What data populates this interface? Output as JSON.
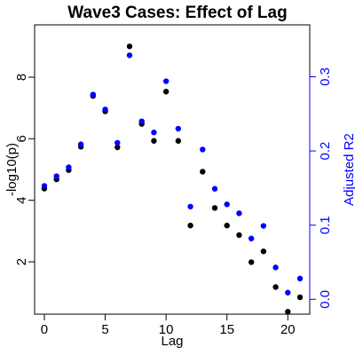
{
  "chart_data": {
    "type": "scatter",
    "title": "Wave3 Cases: Effect of Lag",
    "xlabel": "Lag",
    "ylabel_left": "-log10(p)",
    "ylabel_right": "Adjusted R2",
    "xlim": [
      -0.8,
      21.8
    ],
    "ylim_left": [
      0.3,
      9.7
    ],
    "ylim_right": [
      -0.02,
      0.37
    ],
    "x_ticks": [
      0,
      5,
      10,
      15,
      20
    ],
    "y_left_ticks": [
      2,
      4,
      6,
      8
    ],
    "y_right_ticks": [
      0.0,
      0.1,
      0.2,
      0.3
    ],
    "y_right_tick_labels": [
      "0.0",
      "0.1",
      "0.2",
      "0.3"
    ],
    "colors": {
      "left_series": "#000000",
      "right_series": "#0000ff",
      "right_axis": "#0000ff"
    },
    "series": [
      {
        "axis": "left",
        "x": [
          0,
          1,
          2,
          3,
          4,
          5,
          6,
          7,
          8,
          9,
          10,
          11,
          12,
          13,
          14,
          15,
          16,
          17,
          18,
          19,
          20,
          21
        ],
        "values": [
          4.38,
          4.68,
          4.98,
          5.74,
          7.39,
          6.89,
          5.72,
          9.0,
          6.48,
          5.93,
          7.53,
          5.93,
          3.18,
          4.93,
          3.75,
          3.18,
          2.87,
          1.99,
          2.34,
          1.18,
          0.38,
          0.85
        ]
      },
      {
        "axis": "right",
        "x": [
          0,
          1,
          2,
          3,
          4,
          5,
          6,
          7,
          8,
          9,
          10,
          11,
          12,
          13,
          14,
          15,
          16,
          17,
          18,
          19,
          20,
          21
        ],
        "values": [
          0.153,
          0.166,
          0.178,
          0.209,
          0.276,
          0.256,
          0.211,
          0.329,
          0.24,
          0.225,
          0.294,
          0.23,
          0.125,
          0.202,
          0.149,
          0.128,
          0.116,
          0.082,
          0.099,
          0.043,
          0.009,
          0.028
        ]
      }
    ]
  }
}
